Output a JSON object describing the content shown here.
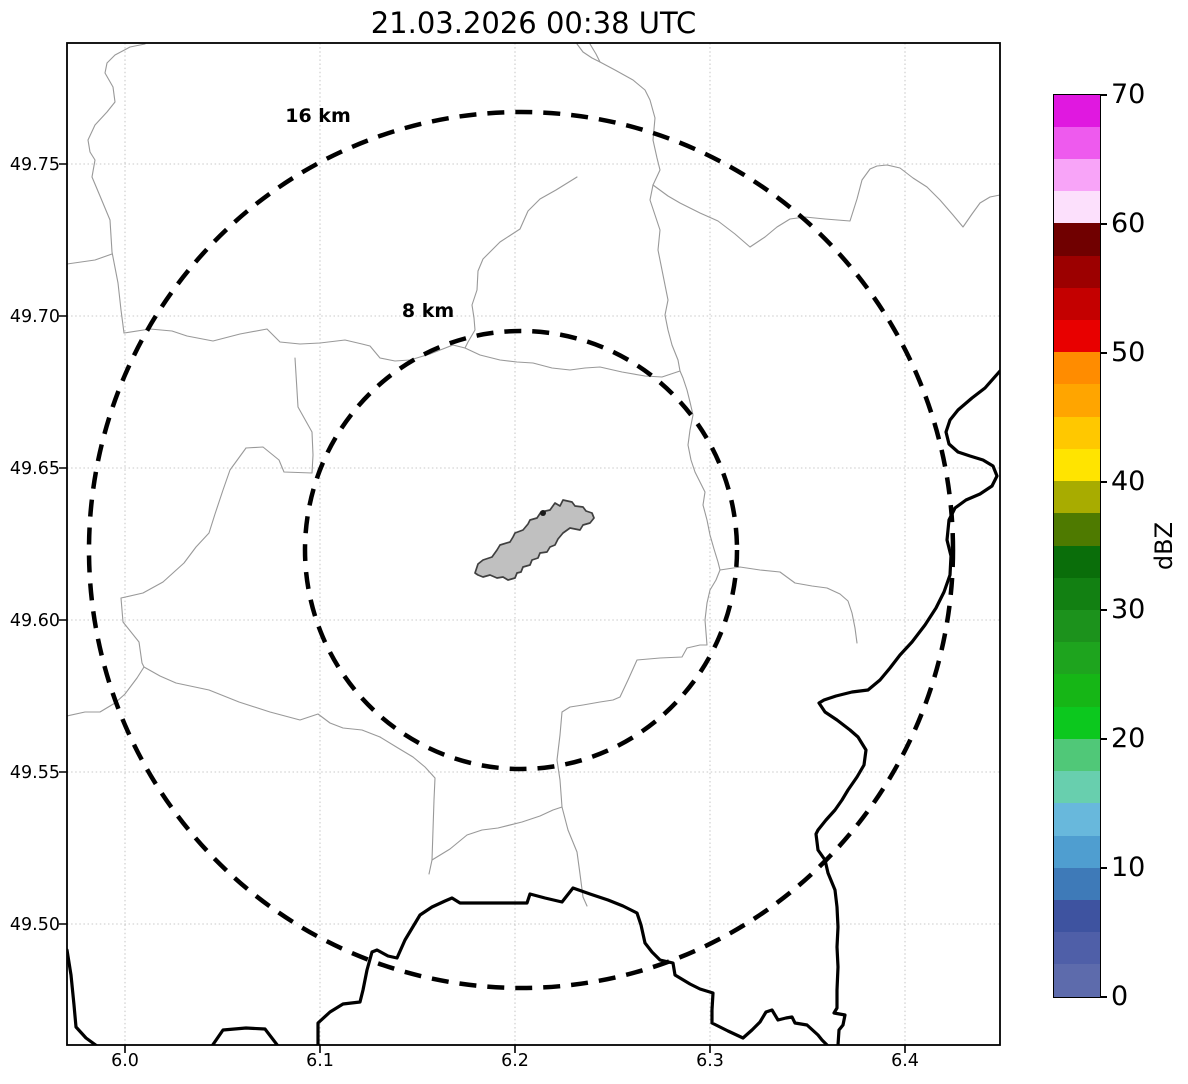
{
  "title": "21.03.2026 00:38 UTC",
  "x_axis": {
    "ticks": [
      "6.0",
      "6.1",
      "6.2",
      "6.3",
      "6.4"
    ]
  },
  "y_axis": {
    "ticks": [
      "49.75",
      "49.70",
      "49.65",
      "49.60",
      "49.55",
      "49.50"
    ]
  },
  "range_rings": {
    "outer_label": "16 km",
    "inner_label": "8 km"
  },
  "colorbar": {
    "label": "dBZ",
    "tick_labels": [
      "70",
      "60",
      "50",
      "40",
      "30",
      "20",
      "10",
      "0"
    ],
    "value_min": 0,
    "value_max": 70,
    "band_step_dbz": 2.5,
    "band_colors_low_to_high": [
      "#5d6bac",
      "#4f5fa8",
      "#3e53a0",
      "#3e7ab8",
      "#4f9ed0",
      "#68b8dc",
      "#68cfae",
      "#50c878",
      "#0cc81e",
      "#16b616",
      "#1ea41e",
      "#1c921c",
      "#128012",
      "#0a6e0a",
      "#4e7a00",
      "#a8ac00",
      "#ffe400",
      "#ffc800",
      "#ffa500",
      "#ff8c00",
      "#e80000",
      "#c40000",
      "#9c0000",
      "#700000",
      "#fce0fc",
      "#f8a4f8",
      "#ee5aee",
      "#e018e0"
    ]
  },
  "map_colors": {
    "city_fill": "#c0c0c0",
    "city_stroke": "#404040",
    "admin_boundary": "#999999",
    "country_border": "#000000",
    "grid": "#c9c9c9",
    "ring": "#000000"
  }
}
